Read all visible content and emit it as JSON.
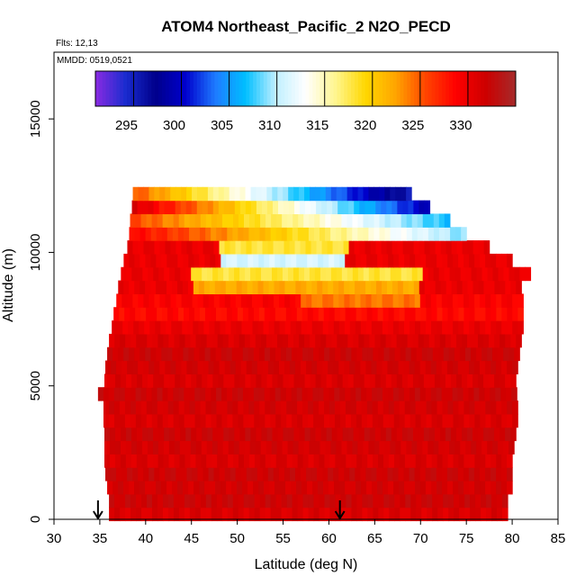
{
  "chart_data": {
    "type": "heatmap",
    "title": "ATOM4 Northeast_Pacific_2 N2O_PECD",
    "annotations": [
      "Flts: 12,13",
      "MMDD: 0519,0521"
    ],
    "xlabel": "Latitude (deg N)",
    "ylabel": "Altitude (m)",
    "xlim": [
      30,
      85
    ],
    "ylim": [
      0,
      17500
    ],
    "xticks": [
      30,
      35,
      40,
      45,
      50,
      55,
      60,
      65,
      70,
      75,
      80,
      85
    ],
    "yticks": [
      0,
      5000,
      10000,
      15000
    ],
    "colorbar": {
      "range": [
        291,
        335
      ],
      "ticks": [
        295,
        300,
        305,
        310,
        315,
        320,
        325,
        330
      ],
      "palette": [
        "#8a2be2",
        "#1a2ccf",
        "#00008b",
        "#0000cd",
        "#1e7bff",
        "#00bfff",
        "#bfefff",
        "#ffffff",
        "#fff68f",
        "#ffd700",
        "#ffa500",
        "#ff4500",
        "#ff0000",
        "#cd0000",
        "#a52a2a"
      ]
    },
    "grid": false,
    "legend": "colorbar-top",
    "arrows_lat": [
      34.8,
      61.2
    ],
    "layers": [
      {
        "alt": 200,
        "lat": [
          36,
          79.5
        ],
        "value": 331
      },
      {
        "alt": 700,
        "lat": [
          36,
          79.5
        ],
        "value": 332
      },
      {
        "alt": 1200,
        "lat": [
          35.8,
          80
        ],
        "value": 331.5
      },
      {
        "alt": 1700,
        "lat": [
          35.6,
          80
        ],
        "value": 332
      },
      {
        "alt": 2200,
        "lat": [
          35.5,
          80
        ],
        "value": 331
      },
      {
        "alt": 2700,
        "lat": [
          35.5,
          80.2
        ],
        "value": 331.5
      },
      {
        "alt": 3200,
        "lat": [
          35.5,
          80.4
        ],
        "value": 332
      },
      {
        "alt": 3700,
        "lat": [
          35.4,
          80.6
        ],
        "value": 331
      },
      {
        "alt": 4200,
        "lat": [
          35.4,
          80.6
        ],
        "value": 331.5
      },
      {
        "alt": 4700,
        "lat": [
          34.8,
          80.5
        ],
        "value": 332
      },
      {
        "alt": 5200,
        "lat": [
          35.5,
          80.4
        ],
        "value": 331
      },
      {
        "alt": 5700,
        "lat": [
          35.6,
          80.6
        ],
        "value": 331.5
      },
      {
        "alt": 6200,
        "lat": [
          35.8,
          80.8
        ],
        "value": 332
      },
      {
        "alt": 6700,
        "lat": [
          36,
          81
        ],
        "value": 331
      },
      {
        "alt": 7200,
        "lat": [
          36.3,
          81.2
        ],
        "value": 330
      },
      {
        "alt": 7700,
        "lat": [
          36.5,
          81.2
        ],
        "value": 328.5
      },
      {
        "alt": 8200,
        "lat": [
          36.8,
          81.2
        ],
        "value": 324
      },
      {
        "alt": 8700,
        "lat": [
          37,
          81
        ],
        "value": 322
      },
      {
        "alt": 9200,
        "lat": [
          37.3,
          82
        ],
        "value": 318
      },
      {
        "alt": 9700,
        "lat": [
          37.6,
          80
        ],
        "value": 311
      },
      {
        "alt": 10200,
        "lat": [
          38,
          77.5
        ],
        "value": 318
      },
      {
        "alt": 10700,
        "lat": [
          38.2,
          75
        ],
        "value": 315
      },
      {
        "alt": 11200,
        "lat": [
          38.3,
          73.2
        ],
        "value": 312
      },
      {
        "alt": 11700,
        "lat": [
          38.5,
          71
        ],
        "value": 310
      },
      {
        "alt": 12200,
        "lat": [
          38.6,
          69
        ],
        "value": 304
      }
    ]
  }
}
